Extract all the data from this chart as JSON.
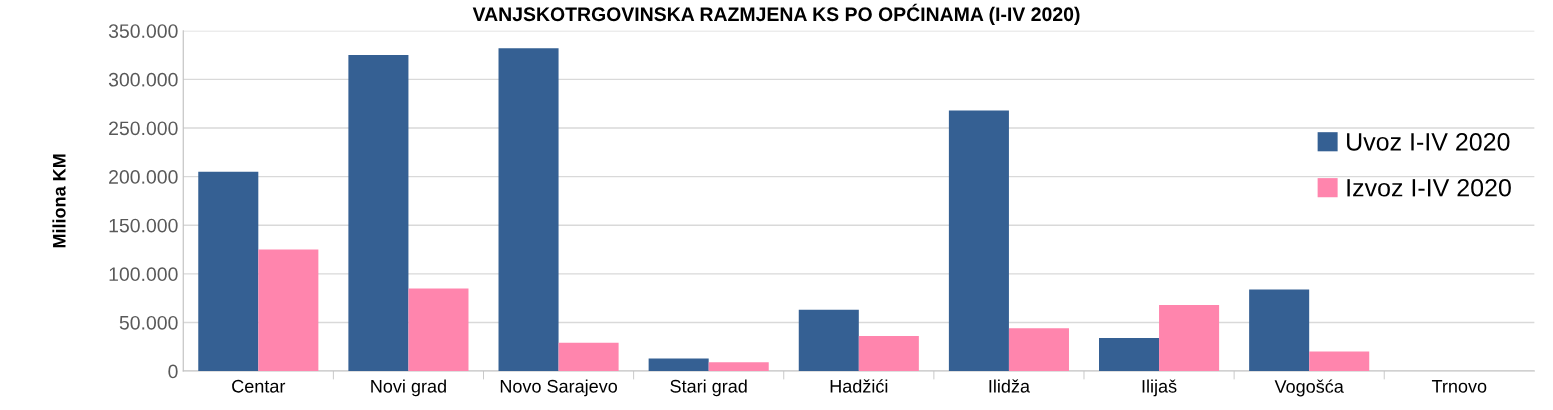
{
  "chart_data": {
    "type": "bar",
    "title": "VANJSKOTRGOVINSKA RAZMJENA KS PO OPĆINAMA (I-IV 2020)",
    "ylabel": "Miliona KM",
    "categories": [
      "Centar",
      "Novi grad",
      "Novo Sarajevo",
      "Stari grad",
      "Hadžići",
      "Ilidža",
      "Ilijaš",
      "Vogošća",
      "Trnovo"
    ],
    "series": [
      {
        "name": "Uvoz I-IV 2020",
        "color": "#356093",
        "values": [
          205000,
          325000,
          332000,
          13000,
          63000,
          268000,
          34000,
          84000,
          0
        ]
      },
      {
        "name": "Izvoz I-IV 2020",
        "color": "#ff85ad",
        "values": [
          125000,
          85000,
          29000,
          9000,
          36000,
          44000,
          68000,
          20000,
          0
        ]
      }
    ],
    "ylim": [
      0,
      350000
    ],
    "yticks": [
      0,
      {
        "value": 50000,
        "label": "50.000"
      },
      {
        "value": 100000,
        "label": "100.000"
      },
      {
        "value": 150000,
        "label": "150.000"
      },
      {
        "value": 200000,
        "label": "200.000"
      },
      {
        "value": 250000,
        "label": "250.000"
      },
      {
        "value": 300000,
        "label": "300.000"
      },
      {
        "value": 350000,
        "label": "350.000"
      }
    ],
    "grid": "y",
    "legend": "right"
  }
}
